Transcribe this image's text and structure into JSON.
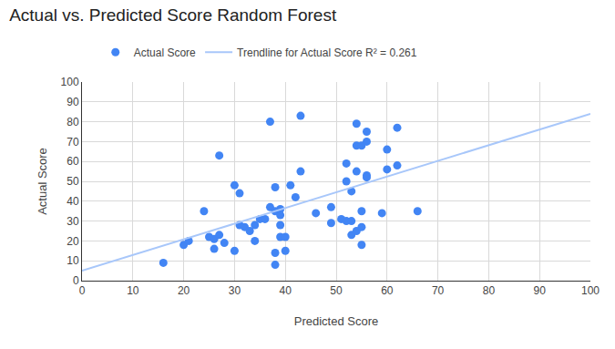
{
  "chart_data": {
    "type": "scatter",
    "title": "Actual vs. Predicted Score Random Forest",
    "x_label": "Predicted Score",
    "y_label": "Actual Score",
    "series": [
      {
        "name": "Actual Score",
        "type": "scatter",
        "marker": "circle",
        "color": "#4285f4",
        "x": [
          16,
          20,
          21,
          24,
          25,
          26,
          26,
          27,
          27,
          28,
          30,
          30,
          31,
          31,
          32,
          33,
          34,
          34,
          35,
          36,
          37,
          37,
          38,
          38,
          38,
          38,
          39,
          39,
          39,
          39,
          40,
          40,
          41,
          42,
          43,
          43,
          46,
          49,
          49,
          51,
          52,
          52,
          52,
          53,
          53,
          53,
          54,
          54,
          54,
          54,
          55,
          55,
          55,
          55,
          56,
          56,
          56,
          56,
          59,
          60,
          60,
          62,
          62,
          66
        ],
        "values": [
          9,
          18,
          20,
          35,
          22,
          16,
          21,
          23,
          63,
          19,
          15,
          48,
          44,
          28,
          27,
          25,
          28,
          20,
          31,
          31,
          80,
          37,
          35,
          47,
          14,
          8,
          36,
          33,
          28,
          22,
          22,
          15,
          48,
          42,
          83,
          55,
          34,
          37,
          29,
          31,
          30,
          59,
          50,
          23,
          45,
          30,
          79,
          55,
          68,
          25,
          68,
          35,
          27,
          18,
          75,
          70,
          53,
          52,
          34,
          66,
          56,
          77,
          58,
          35
        ]
      },
      {
        "name": "Trendline for Actual Score R² = 0.261",
        "type": "line",
        "line_style": "solid",
        "color": "#a8c7fa",
        "x": [
          0,
          100
        ],
        "values": [
          5,
          84
        ]
      }
    ],
    "xlim": [
      0,
      100
    ],
    "xticks": [
      0,
      10,
      20,
      30,
      40,
      50,
      60,
      70,
      80,
      90,
      100
    ],
    "ylim": [
      0,
      100
    ],
    "yticks": [
      0,
      10,
      20,
      30,
      40,
      50,
      60,
      70,
      80,
      90,
      100
    ],
    "grid": true,
    "legend": "top"
  }
}
